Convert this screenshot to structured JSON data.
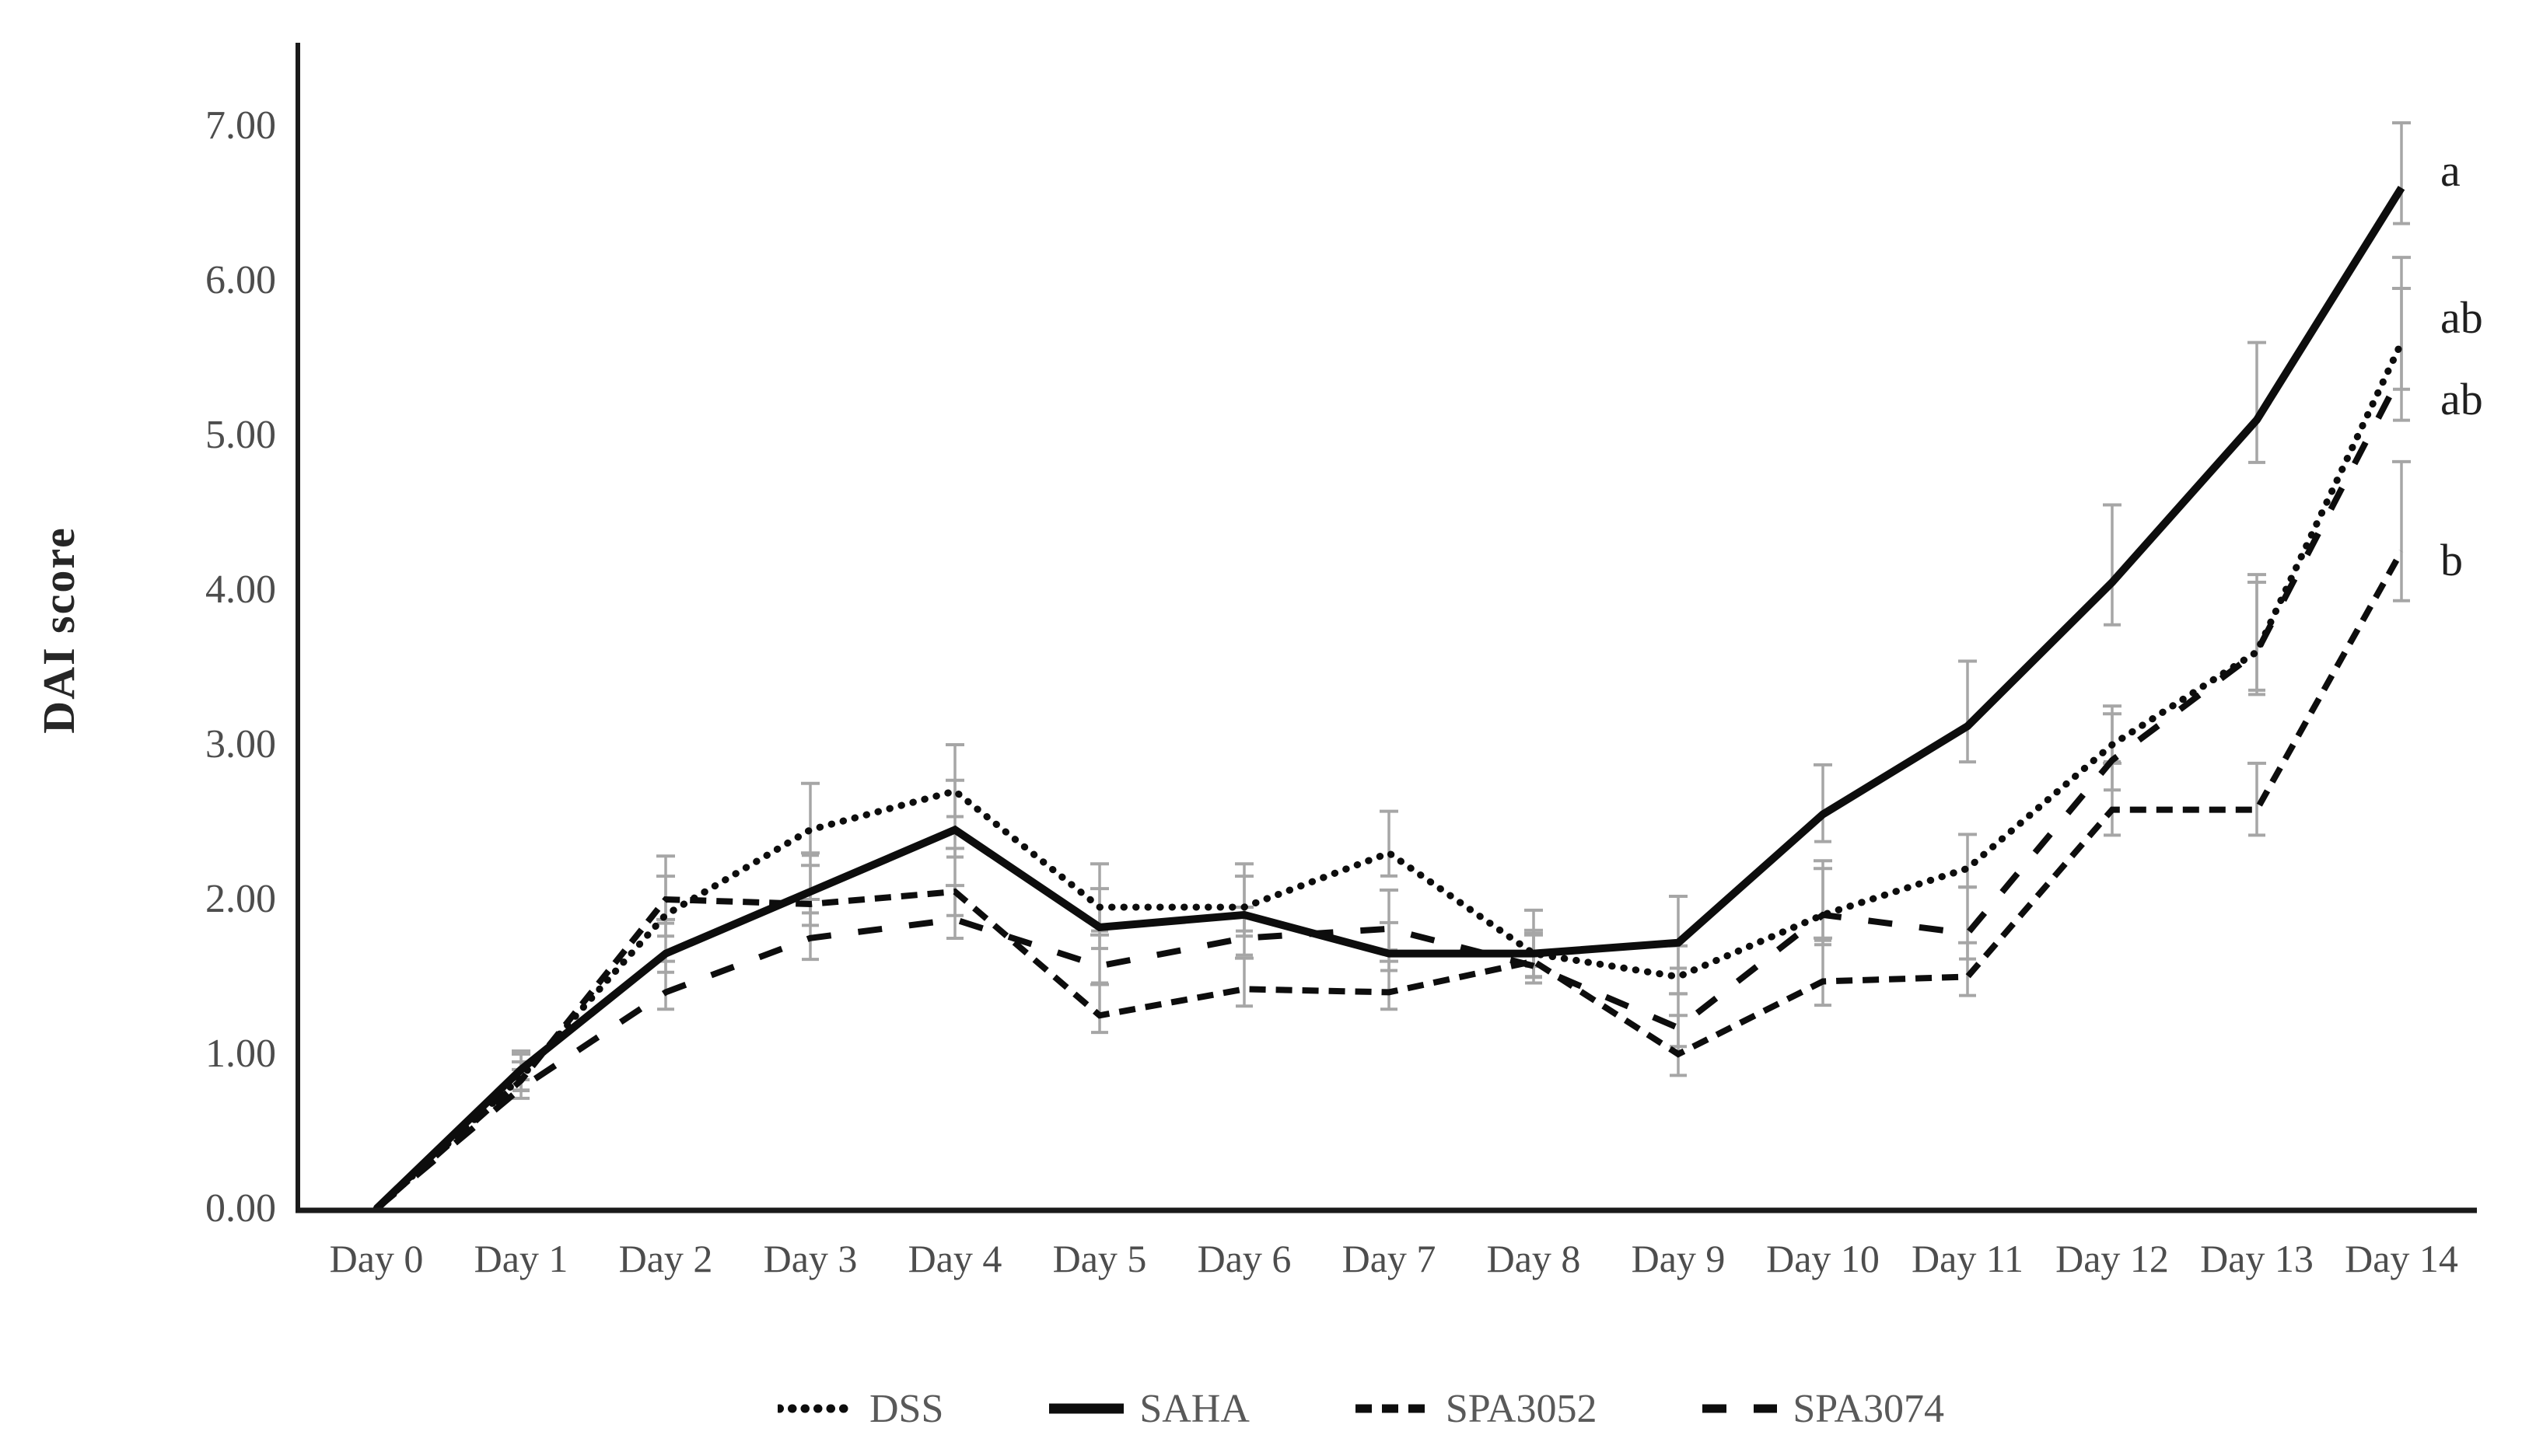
{
  "chart_data": {
    "type": "line",
    "title": "",
    "xlabel": "",
    "ylabel": "DAI score",
    "ylim": [
      0,
      7
    ],
    "grid": false,
    "legend_position": "bottom",
    "ytick_labels": [
      "0.00",
      "1.00",
      "2.00",
      "3.00",
      "4.00",
      "5.00",
      "6.00",
      "7.00"
    ],
    "yticks": [
      0,
      1,
      2,
      3,
      4,
      5,
      6,
      7
    ],
    "categories": [
      "Day 0",
      "Day 1",
      "Day 2",
      "Day 3",
      "Day 4",
      "Day 5",
      "Day 6",
      "Day 7",
      "Day 8",
      "Day 9",
      "Day 10",
      "Day 11",
      "Day 12",
      "Day 13",
      "Day 14"
    ],
    "series": [
      {
        "name": "DSS",
        "style": "dotted",
        "values": [
          0.0,
          0.85,
          1.9,
          2.45,
          2.7,
          1.95,
          1.95,
          2.3,
          1.65,
          1.5,
          1.9,
          2.2,
          3.0,
          3.6,
          5.6
        ],
        "errors": [
          0,
          0.15,
          0.25,
          0.3,
          0.3,
          0.28,
          0.28,
          0.27,
          0.28,
          0.2,
          0.35,
          0.22,
          0.2,
          0.5,
          0.55
        ]
      },
      {
        "name": "SAHA",
        "style": "solid",
        "values": [
          0.0,
          0.9,
          1.65,
          2.05,
          2.45,
          1.82,
          1.9,
          1.65,
          1.65,
          1.72,
          2.55,
          3.12,
          4.05,
          5.1,
          6.6
        ],
        "errors": [
          0,
          0.12,
          0.22,
          0.25,
          0.32,
          0.25,
          0.25,
          0.2,
          0.15,
          0.3,
          0.32,
          0.42,
          0.5,
          0.5,
          0.42
        ]
      },
      {
        "name": "SPA3052",
        "style": "dashed-short",
        "values": [
          0.0,
          0.83,
          2.0,
          1.97,
          2.05,
          1.25,
          1.42,
          1.4,
          1.6,
          1.0,
          1.47,
          1.5,
          2.58,
          2.58,
          4.25
        ],
        "errors": [
          0,
          0.12,
          0.28,
          0.25,
          0.28,
          0.2,
          0.2,
          0.2,
          0.18,
          0.25,
          0.28,
          0.22,
          0.3,
          0.3,
          0.58
        ]
      },
      {
        "name": "SPA3074",
        "style": "dashed-long",
        "values": [
          0.0,
          0.78,
          1.4,
          1.75,
          1.87,
          1.57,
          1.75,
          1.81,
          1.57,
          1.17,
          1.9,
          1.78,
          2.9,
          3.6,
          5.4
        ],
        "errors": [
          0,
          0.12,
          0.2,
          0.25,
          0.22,
          0.2,
          0.2,
          0.25,
          0.2,
          0.22,
          0.3,
          0.3,
          0.35,
          0.45,
          0.55
        ]
      }
    ],
    "annotations": [
      {
        "text": "a",
        "at_value": 6.7
      },
      {
        "text": "ab",
        "at_value": 5.75
      },
      {
        "text": "ab",
        "at_value": 5.22
      },
      {
        "text": "b",
        "at_value": 4.18
      }
    ],
    "legend_labels": [
      "DSS",
      "SAHA",
      "SPA3052",
      "SPA3074"
    ],
    "colors": {
      "line": "#0d0d0d",
      "error_bar": "#a6a6a6",
      "tick_label": "#4d4d4d",
      "axis": "#1a1a1a",
      "background": "#ffffff"
    }
  }
}
